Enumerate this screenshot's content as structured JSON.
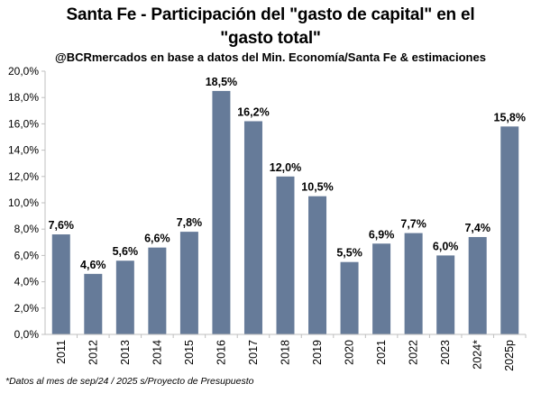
{
  "chart_data": {
    "type": "bar",
    "title_line1": "Santa Fe - Participación del \"gasto de capital\" en el",
    "title_line2": "\"gasto total\"",
    "subtitle": "@BCRmercados en base a datos del Min. Economía/Santa Fe & estimaciones",
    "footnote": "*Datos al mes de sep/24 / 2025 s/Proyecto de Presupuesto",
    "categories": [
      "2011",
      "2012",
      "2013",
      "2014",
      "2015",
      "2016",
      "2017",
      "2018",
      "2019",
      "2020",
      "2021",
      "2022",
      "2023",
      "2024*",
      "2025p"
    ],
    "values": [
      7.6,
      4.6,
      5.6,
      6.6,
      7.8,
      18.5,
      16.2,
      12.0,
      10.5,
      5.5,
      6.9,
      7.7,
      6.0,
      7.4,
      15.8
    ],
    "value_labels": [
      "7,6%",
      "4,6%",
      "5,6%",
      "6,6%",
      "7,8%",
      "18,5%",
      "16,2%",
      "12,0%",
      "10,5%",
      "5,5%",
      "6,9%",
      "7,7%",
      "6,0%",
      "7,4%",
      "15,8%"
    ],
    "y_ticks": [
      0,
      2,
      4,
      6,
      8,
      10,
      12,
      14,
      16,
      18,
      20
    ],
    "y_tick_labels": [
      "0,0%",
      "2,0%",
      "4,0%",
      "6,0%",
      "8,0%",
      "10,0%",
      "12,0%",
      "14,0%",
      "16,0%",
      "18,0%",
      "20,0%"
    ],
    "ylim": [
      0,
      20
    ],
    "xlabel": "",
    "ylabel": "",
    "grid": false,
    "legend": "none",
    "bar_color": "#667b99",
    "axis_color": "#bfbfbf"
  }
}
